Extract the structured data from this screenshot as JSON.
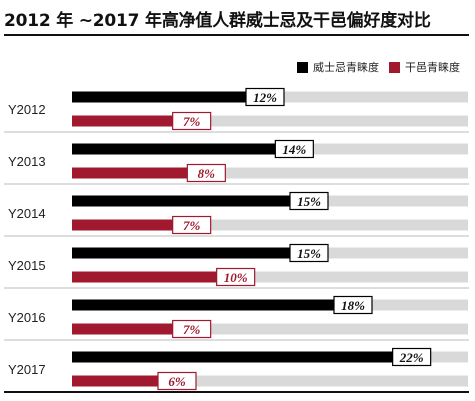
{
  "chart_data": {
    "type": "bar",
    "orientation": "horizontal",
    "title": "2012 年 ~2017 年高净值人群威士忌及干邑偏好度对比",
    "categories": [
      "Y2012",
      "Y2013",
      "Y2014",
      "Y2015",
      "Y2016",
      "Y2017"
    ],
    "value_format": "percent",
    "xlim": [
      0,
      27
    ],
    "grid": false,
    "legend_position": "top-right",
    "series": [
      {
        "name": "威士忌青睐度",
        "color": "#000000",
        "values": [
          12,
          14,
          15,
          15,
          18,
          22
        ]
      },
      {
        "name": "干邑青睐度",
        "color": "#a0192e",
        "values": [
          7,
          8,
          7,
          10,
          7,
          6
        ]
      }
    ],
    "track_color": "#d9d9d9"
  }
}
